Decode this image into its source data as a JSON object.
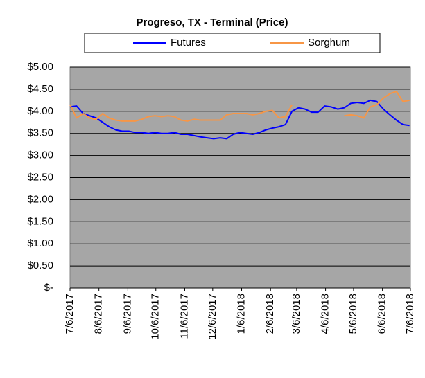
{
  "chart_data": {
    "type": "line",
    "title": "Progreso, TX - Terminal (Price)",
    "x": [
      "7/6/2017",
      "7/13/2017",
      "7/20/2017",
      "7/27/2017",
      "8/3/2017",
      "8/10/2017",
      "8/17/2017",
      "8/24/2017",
      "8/31/2017",
      "9/7/2017",
      "9/14/2017",
      "9/21/2017",
      "9/28/2017",
      "10/5/2017",
      "10/12/2017",
      "10/19/2017",
      "10/26/2017",
      "11/2/2017",
      "11/9/2017",
      "11/16/2017",
      "11/23/2017",
      "11/30/2017",
      "12/7/2017",
      "12/14/2017",
      "12/21/2017",
      "12/28/2017",
      "1/4/2018",
      "1/11/2018",
      "1/18/2018",
      "1/25/2018",
      "2/1/2018",
      "2/8/2018",
      "2/15/2018",
      "2/22/2018",
      "3/1/2018",
      "3/8/2018",
      "3/15/2018",
      "3/22/2018",
      "3/29/2018",
      "4/5/2018",
      "4/12/2018",
      "4/19/2018",
      "4/26/2018",
      "5/3/2018",
      "5/10/2018",
      "5/17/2018",
      "5/24/2018",
      "5/31/2018",
      "6/7/2018",
      "6/14/2018",
      "6/21/2018",
      "6/28/2018",
      "7/5/2018"
    ],
    "series": [
      {
        "name": "Futures",
        "color": "#0000ff",
        "values": [
          4.1,
          4.12,
          3.95,
          3.9,
          3.85,
          3.75,
          3.65,
          3.58,
          3.55,
          3.55,
          3.52,
          3.52,
          3.5,
          3.52,
          3.5,
          3.5,
          3.52,
          3.48,
          3.48,
          3.45,
          3.42,
          3.4,
          3.38,
          3.4,
          3.38,
          3.48,
          3.52,
          3.5,
          3.48,
          3.52,
          3.58,
          3.62,
          3.65,
          3.7,
          4.0,
          4.08,
          4.05,
          3.98,
          3.98,
          4.12,
          4.1,
          4.05,
          4.08,
          4.18,
          4.2,
          4.18,
          4.25,
          4.22,
          4.05,
          3.92,
          3.8,
          3.7,
          3.68
        ]
      },
      {
        "name": "Sorghum",
        "color": "#f79646",
        "values": [
          4.15,
          3.85,
          3.95,
          3.85,
          3.82,
          3.95,
          3.85,
          3.8,
          3.78,
          3.78,
          3.78,
          3.82,
          3.88,
          3.9,
          3.88,
          3.9,
          3.88,
          3.8,
          3.78,
          3.82,
          3.8,
          3.8,
          3.8,
          3.8,
          3.92,
          3.95,
          3.95,
          3.95,
          3.92,
          3.95,
          4.0,
          4.02,
          3.85,
          3.88,
          4.15,
          null,
          null,
          null,
          null,
          null,
          null,
          null,
          3.9,
          3.92,
          3.9,
          3.85,
          4.1,
          4.15,
          4.3,
          4.4,
          4.45,
          4.22,
          4.25
        ]
      }
    ],
    "xlim": [
      "7/6/2017",
      "7/6/2018"
    ],
    "xticks": [
      "7/6/2017",
      "8/6/2017",
      "9/6/2017",
      "10/6/2017",
      "11/6/2017",
      "12/6/2017",
      "1/6/2018",
      "2/6/2018",
      "3/6/2018",
      "4/6/2018",
      "5/6/2018",
      "6/6/2018",
      "7/6/2018"
    ],
    "ylim": [
      0,
      5
    ],
    "yticks": [
      {
        "value": 0,
        "label": "$-"
      },
      {
        "value": 0.5,
        "label": "$0.50"
      },
      {
        "value": 1,
        "label": "$1.00"
      },
      {
        "value": 1.5,
        "label": "$1.50"
      },
      {
        "value": 2,
        "label": "$2.00"
      },
      {
        "value": 2.5,
        "label": "$2.50"
      },
      {
        "value": 3,
        "label": "$3.00"
      },
      {
        "value": 3.5,
        "label": "$3.50"
      },
      {
        "value": 4,
        "label": "$4.00"
      },
      {
        "value": 4.5,
        "label": "$4.50"
      },
      {
        "value": 5,
        "label": "$5.00"
      }
    ],
    "grid": true,
    "legend": "top"
  }
}
